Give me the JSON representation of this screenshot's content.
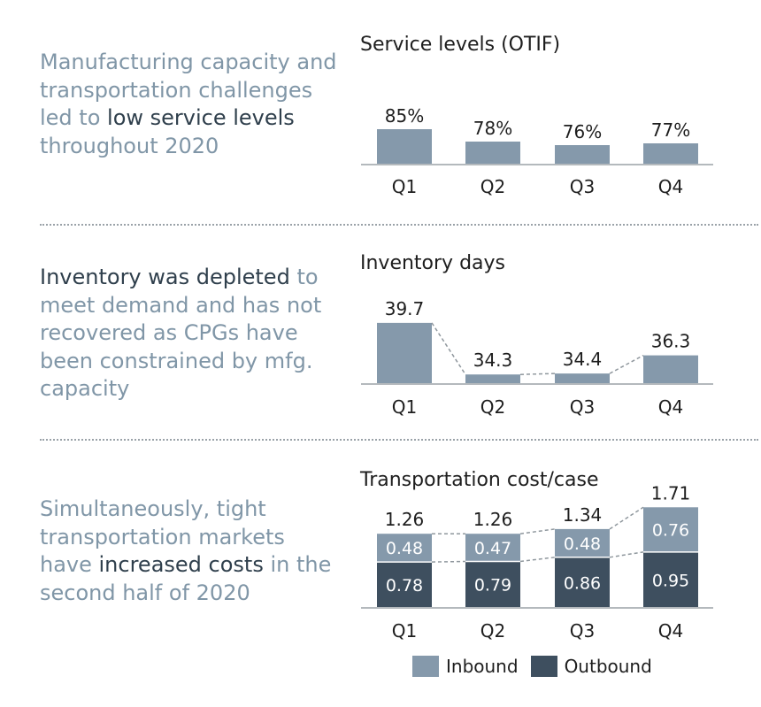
{
  "sections": [
    {
      "description": [
        {
          "text": "Manufacturing capacity and transportation challenges led to ",
          "emphasis": false
        },
        {
          "text": "low service levels",
          "emphasis": true
        },
        {
          "text": " throughout 2020",
          "emphasis": false
        }
      ]
    },
    {
      "description": [
        {
          "text": "Inventory was depleted",
          "emphasis": true
        },
        {
          "text": " to meet demand and has not recovered as CPGs have been constrained by mfg. capacity",
          "emphasis": false
        }
      ]
    },
    {
      "description": [
        {
          "text": "Simultaneously, tight transportation markets have ",
          "emphasis": false
        },
        {
          "text": "increased costs",
          "emphasis": true
        },
        {
          "text": " in the second half of 2020",
          "emphasis": false
        }
      ]
    }
  ],
  "colors": {
    "bar": "#8599ab",
    "inbound": "#8599ab",
    "outbound": "#3e4f5f",
    "description": "#8096a7",
    "emphasis": "#2f3f4c"
  },
  "legend": {
    "inbound": "Inbound",
    "outbound": "Outbound"
  },
  "chart_data": [
    {
      "type": "bar",
      "title": "Service levels (OTIF)",
      "categories": [
        "Q1",
        "Q2",
        "Q3",
        "Q4"
      ],
      "values": [
        85,
        78,
        76,
        77
      ],
      "value_labels": [
        "85%",
        "78%",
        "76%",
        "77%"
      ],
      "unit": "%"
    },
    {
      "type": "bar",
      "title": "Inventory days",
      "categories": [
        "Q1",
        "Q2",
        "Q3",
        "Q4"
      ],
      "values": [
        39.7,
        34.3,
        34.4,
        36.3
      ],
      "value_labels": [
        "39.7",
        "34.3",
        "34.4",
        "36.3"
      ],
      "connector_lines": true
    },
    {
      "type": "bar",
      "stacked": true,
      "title": "Transportation cost/case",
      "categories": [
        "Q1",
        "Q2",
        "Q3",
        "Q4"
      ],
      "series": [
        {
          "name": "Outbound",
          "values": [
            0.78,
            0.79,
            0.86,
            0.95
          ],
          "labels": [
            "0.78",
            "0.79",
            "0.86",
            "0.95"
          ]
        },
        {
          "name": "Inbound",
          "values": [
            0.48,
            0.47,
            0.48,
            0.76
          ],
          "labels": [
            "0.48",
            "0.47",
            "0.48",
            "0.76"
          ]
        }
      ],
      "totals": [
        1.26,
        1.26,
        1.34,
        1.71
      ],
      "total_labels": [
        "1.26",
        "1.26",
        "1.34",
        "1.71"
      ],
      "connector_lines": true,
      "legend_position": "bottom"
    }
  ]
}
